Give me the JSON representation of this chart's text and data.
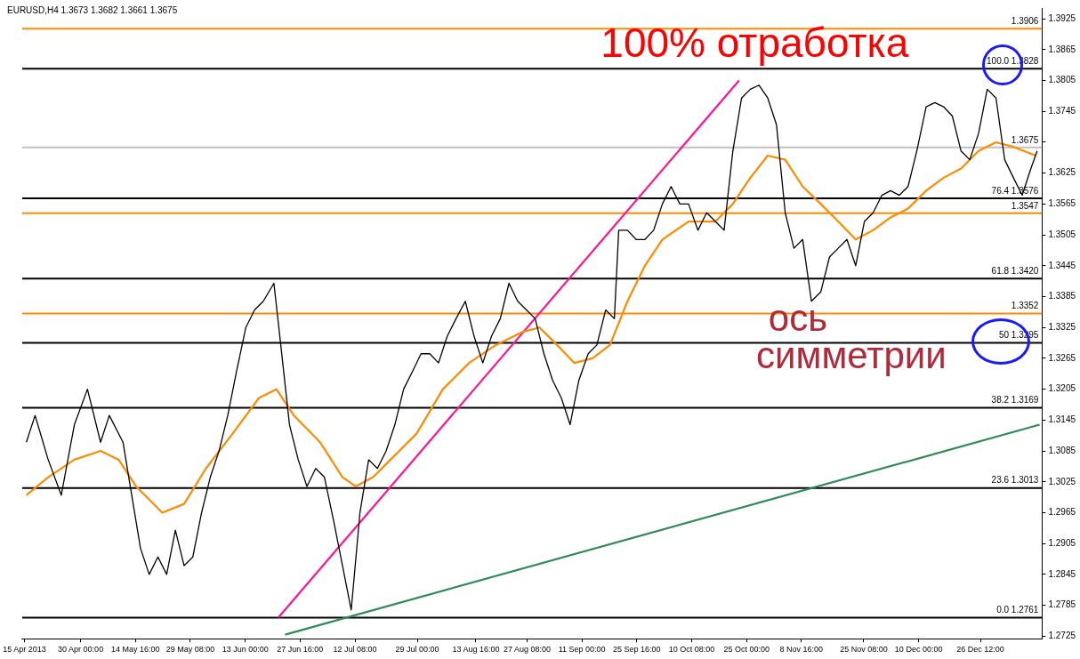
{
  "chart_data": {
    "type": "line",
    "title": "EURUSD,H4 1.3673 1.3682 1.3661 1.3675",
    "annotations": [
      {
        "text": "100% отработка",
        "x": "2013-10-27T04:00",
        "y": 1.3828
      },
      {
        "text": "ось симметрии",
        "x": "2013-11-22T00:00",
        "y": 1.3295
      }
    ],
    "series": [
      {
        "color": "#000000",
        "x": [
          "2013-04-15T12:00",
          "2013-04-17T20:00",
          "2013-04-21T08:00",
          "2013-04-24T20:00",
          "2013-04-28T08:00",
          "2013-05-01T20:00",
          "2013-05-05T08:00",
          "2013-05-07T16:00",
          "2013-05-11T08:00",
          "2013-05-13T16:00",
          "2013-05-16T00:00",
          "2013-05-18T08:00",
          "2013-05-20T16:00",
          "2013-05-23T00:00",
          "2013-05-25T08:00",
          "2013-05-27T16:00",
          "2013-05-30T00:00",
          "2013-06-01T08:00",
          "2013-06-03T16:00",
          "2013-06-06T00:00",
          "2013-06-08T08:00",
          "2013-06-10T16:00",
          "2013-06-13T04:00",
          "2013-06-15T12:00",
          "2013-06-17T20:00",
          "2013-06-20T16:00",
          "2013-06-22T12:00",
          "2013-06-24T20:00",
          "2013-06-27T04:00",
          "2013-06-29T12:00",
          "2013-07-01T20:00",
          "2013-07-04T04:00",
          "2013-07-06T16:00",
          "2013-07-09T00:00",
          "2013-07-11T08:00",
          "2013-07-13T16:00",
          "2013-07-16T00:00",
          "2013-07-18T08:00",
          "2013-07-20T16:00",
          "2013-07-23T00:00",
          "2013-07-25T08:00",
          "2013-07-27T16:00",
          "2013-07-30T00:00",
          "2013-08-01T08:00",
          "2013-08-03T16:00",
          "2013-08-06T00:00",
          "2013-08-08T08:00",
          "2013-08-10T20:00",
          "2013-08-13T04:00",
          "2013-08-15T12:00",
          "2013-08-17T20:00",
          "2013-08-20T04:00",
          "2013-08-22T12:00",
          "2013-08-24T20:00",
          "2013-08-27T04:00",
          "2013-08-29T12:00",
          "2013-08-31T20:00",
          "2013-09-03T04:00",
          "2013-09-05T12:00",
          "2013-09-07T20:00",
          "2013-09-10T04:00",
          "2013-09-12T16:00",
          "2013-09-15T00:00",
          "2013-09-17T08:00",
          "2013-09-19T16:00",
          "2013-09-20T20:00",
          "2013-09-23T04:00",
          "2013-09-25T12:00",
          "2013-09-27T20:00",
          "2013-09-30T04:00",
          "2013-10-02T12:00",
          "2013-10-04T20:00",
          "2013-10-07T04:00",
          "2013-10-09T12:00",
          "2013-10-12T00:00",
          "2013-10-14T08:00",
          "2013-10-16T16:00",
          "2013-10-19T00:00",
          "2013-10-21T08:00",
          "2013-10-23T16:00",
          "2013-10-26T00:00",
          "2013-10-28T08:00",
          "2013-10-30T16:00",
          "2013-11-02T00:00",
          "2013-11-04T08:00",
          "2013-11-06T16:00",
          "2013-11-09T00:00",
          "2013-11-11T08:00",
          "2013-11-13T20:00",
          "2013-11-16T04:00",
          "2013-11-18T12:00",
          "2013-11-20T20:00",
          "2013-11-23T04:00",
          "2013-11-25T12:00",
          "2013-11-27T20:00",
          "2013-11-30T04:00",
          "2013-12-02T12:00",
          "2013-12-04T20:00",
          "2013-12-07T04:00",
          "2013-12-09T12:00",
          "2013-12-12T00:00",
          "2013-12-14T08:00",
          "2013-12-16T16:00",
          "2013-12-19T00:00",
          "2013-12-21T08:00",
          "2013-12-23T16:00",
          "2013-12-26T00:00",
          "2013-12-28T08:00",
          "2013-12-30T16:00",
          "2014-01-02T00:00",
          "2014-01-04T08:00",
          "2014-01-06T16:00",
          "2014-01-09T00:00",
          "2014-01-10T16:00"
        ],
        "values": [
          1.3102,
          1.3154,
          1.3068,
          1.2999,
          1.3136,
          1.3205,
          1.3102,
          1.3154,
          1.3102,
          1.2999,
          1.2896,
          1.2845,
          1.2879,
          1.2845,
          1.2931,
          1.2862,
          1.2879,
          1.2965,
          1.3034,
          1.3085,
          1.3154,
          1.3239,
          1.3325,
          1.3359,
          1.3376,
          1.3411,
          1.3291,
          1.3136,
          1.3068,
          1.3016,
          1.3051,
          1.3034,
          1.2948,
          1.2862,
          1.2776,
          1.2965,
          1.3068,
          1.3051,
          1.3085,
          1.3136,
          1.3205,
          1.3239,
          1.3274,
          1.3274,
          1.3256,
          1.3308,
          1.3342,
          1.3376,
          1.3308,
          1.3256,
          1.3308,
          1.3342,
          1.3411,
          1.3376,
          1.3359,
          1.3342,
          1.3274,
          1.3222,
          1.3188,
          1.3136,
          1.3222,
          1.3274,
          1.3291,
          1.3359,
          1.3342,
          1.3514,
          1.3514,
          1.3496,
          1.3496,
          1.3514,
          1.3565,
          1.3599,
          1.3565,
          1.3565,
          1.3514,
          1.3548,
          1.3531,
          1.3514,
          1.3668,
          1.3771,
          1.3788,
          1.3796,
          1.3771,
          1.3719,
          1.3548,
          1.3479,
          1.3496,
          1.3376,
          1.3394,
          1.3462,
          1.3479,
          1.3496,
          1.3445,
          1.3531,
          1.3548,
          1.3582,
          1.3591,
          1.3582,
          1.3599,
          1.3668,
          1.3754,
          1.3762,
          1.3754,
          1.3736,
          1.3668,
          1.3651,
          1.3702,
          1.3788,
          1.3771,
          1.3651,
          1.3616,
          1.3582,
          1.3634,
          1.3668
        ]
      },
      {
        "color": "#ff8c00",
        "x": [
          "2013-04-15T12:00",
          "2013-04-21T08:00",
          "2013-04-28T08:00",
          "2013-05-05T08:00",
          "2013-05-10T04:00",
          "2013-05-14T20:00",
          "2013-05-21T20:00",
          "2013-05-27T16:00",
          "2013-06-02T12:00",
          "2013-06-09T16:00",
          "2013-06-16T16:00",
          "2013-06-21T08:00",
          "2013-06-26T00:00",
          "2013-07-03T00:00",
          "2013-07-09T00:00",
          "2013-07-12T12:00",
          "2013-07-17T04:00",
          "2013-07-21T20:00",
          "2013-07-28T20:00",
          "2013-08-04T20:00",
          "2013-08-11T20:00",
          "2013-08-19T00:00",
          "2013-08-26T00:00",
          "2013-08-30T16:00",
          "2013-09-04T08:00",
          "2013-09-09T00:00",
          "2013-09-13T20:00",
          "2013-09-18T12:00",
          "2013-09-23T04:00",
          "2013-09-27T20:00",
          "2013-10-02T12:00",
          "2013-10-09T12:00",
          "2013-10-16T16:00",
          "2013-10-21T08:00",
          "2013-10-26T00:00",
          "2013-10-30T16:00",
          "2013-11-04T08:00",
          "2013-11-09T00:00",
          "2013-11-13T20:00",
          "2013-11-18T12:00",
          "2013-11-23T04:00",
          "2013-11-27T20:00",
          "2013-12-02T12:00",
          "2013-12-07T04:00",
          "2013-12-12T00:00",
          "2013-12-16T16:00",
          "2013-12-21T08:00",
          "2013-12-26T00:00",
          "2013-12-30T16:00",
          "2014-01-04T08:00",
          "2014-01-10T08:00"
        ],
        "values": [
          1.2999,
          1.3034,
          1.3068,
          1.3085,
          1.3068,
          1.3016,
          1.2965,
          1.2982,
          1.3051,
          1.3119,
          1.3188,
          1.3205,
          1.3154,
          1.3102,
          1.3034,
          1.3016,
          1.3034,
          1.3068,
          1.3119,
          1.3205,
          1.3256,
          1.3291,
          1.3316,
          1.3325,
          1.3291,
          1.3256,
          1.3265,
          1.3291,
          1.3376,
          1.3445,
          1.3496,
          1.3531,
          1.3531,
          1.3565,
          1.3616,
          1.3659,
          1.3651,
          1.3599,
          1.3565,
          1.3531,
          1.3496,
          1.3514,
          1.3539,
          1.3556,
          1.3591,
          1.3616,
          1.3634,
          1.3668,
          1.3685,
          1.3676,
          1.3659
        ]
      },
      {
        "color": "#ff1493",
        "x": [
          "2013-06-21T20:00",
          "2013-10-23T00:00"
        ],
        "values": [
          1.2761,
          1.3805
        ]
      },
      {
        "color": "#2e8b57",
        "x": [
          "2013-06-23T16:00",
          "2014-01-11T08:00"
        ],
        "values": [
          1.2728,
          1.3136
        ]
      }
    ],
    "xlim": [
      "2013-04-14T08:00",
      "2014-01-12T00:00"
    ],
    "xticks": [
      {
        "value": "2013-04-15T00:00",
        "label": "15 Apr 2013"
      },
      {
        "value": "2013-04-30T00:00",
        "label": "30 Apr 00:00"
      },
      {
        "value": "2013-05-14T16:00",
        "label": "14 May 16:00"
      },
      {
        "value": "2013-05-29T08:00",
        "label": "29 May 08:00"
      },
      {
        "value": "2013-06-13T00:00",
        "label": "13 Jun 00:00"
      },
      {
        "value": "2013-06-27T16:00",
        "label": "27 Jun 16:00"
      },
      {
        "value": "2013-07-12T08:00",
        "label": "12 Jul 08:00"
      },
      {
        "value": "2013-07-29T00:00",
        "label": "29 Jul 00:00"
      },
      {
        "value": "2013-08-13T16:00",
        "label": "13 Aug 16:00"
      },
      {
        "value": "2013-08-27T08:00",
        "label": "27 Aug 08:00"
      },
      {
        "value": "2013-09-11T00:00",
        "label": "11 Sep 00:00"
      },
      {
        "value": "2013-09-25T16:00",
        "label": "25 Sep 16:00"
      },
      {
        "value": "2013-10-10T08:00",
        "label": "10 Oct 08:00"
      },
      {
        "value": "2013-10-25T00:00",
        "label": "25 Oct 00:00"
      },
      {
        "value": "2013-11-08T16:00",
        "label": "8 Nov 16:00"
      },
      {
        "value": "2013-11-25T08:00",
        "label": "25 Nov 08:00"
      },
      {
        "value": "2013-12-10T00:00",
        "label": "10 Dec 00:00"
      },
      {
        "value": "2013-12-26T12:00",
        "label": "26 Dec 12:00"
      }
    ],
    "ylim": [
      1.272,
      1.3946
    ],
    "yticks": [
      1.2725,
      1.2785,
      1.2845,
      1.2905,
      1.2965,
      1.3025,
      1.3085,
      1.3145,
      1.3205,
      1.3265,
      1.3325,
      1.3385,
      1.3445,
      1.3505,
      1.3565,
      1.3625,
      {
        "value": 1.3685,
        "label": null
      },
      1.3745,
      1.3805,
      1.3865,
      1.3925
    ],
    "ref_lines": [
      {
        "axis": "y",
        "value": 1.3828,
        "label": "100.0 1.3828",
        "color": "#000000"
      },
      {
        "axis": "y",
        "value": 1.3576,
        "label": "76.4 1.3576",
        "color": "#000000"
      },
      {
        "axis": "y",
        "value": 1.342,
        "label": "61.8 1.3420",
        "color": "#000000"
      },
      {
        "axis": "y",
        "value": 1.3295,
        "label": "50 1.3295",
        "color": "#000000"
      },
      {
        "axis": "y",
        "value": 1.3169,
        "label": "38.2 1.3169",
        "color": "#000000"
      },
      {
        "axis": "y",
        "value": 1.3013,
        "label": "23.6 1.3013",
        "color": "#000000"
      },
      {
        "axis": "y",
        "value": 1.2761,
        "label": "0.0 1.2761",
        "color": "#000000"
      },
      {
        "axis": "y",
        "value": 1.3906,
        "label": "1.3906",
        "color": "#ff8c00"
      },
      {
        "axis": "y",
        "value": 1.3547,
        "label": "1.3547",
        "color": "#ff8c00"
      },
      {
        "axis": "y",
        "value": 1.3352,
        "label": "1.3352",
        "color": "#ff8c00"
      },
      {
        "axis": "y",
        "value": 1.3675,
        "label": "1.3675",
        "color": "#c0c0c0"
      }
    ],
    "grid": false,
    "legend": false,
    "marker": "none",
    "line_style": "solid"
  }
}
